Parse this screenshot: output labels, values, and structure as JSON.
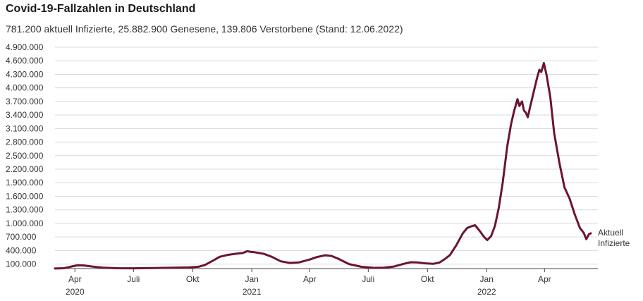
{
  "header": {
    "title": "Covid-19-Fallzahlen in Deutschland",
    "subtitle": "781.200 aktuell Infizierte, 25.882.900 Genesene, 139.806 Verstorbene (Stand: 12.06.2022)"
  },
  "chart_data": {
    "type": "line",
    "title": "Covid-19-Fallzahlen in Deutschland",
    "subtitle": "781.200 aktuell Infizierte, 25.882.900 Genesene, 139.806 Verstorbene (Stand: 12.06.2022)",
    "xlabel": "",
    "ylabel": "",
    "x_range": [
      "2020-03-01",
      "2022-06-12"
    ],
    "ylim": [
      0,
      4900000
    ],
    "grid": true,
    "y_ticks": [
      {
        "value": 100000,
        "label": "100.000"
      },
      {
        "value": 400000,
        "label": "400.000"
      },
      {
        "value": 700000,
        "label": "700.000"
      },
      {
        "value": 1000000,
        "label": "1.000.000"
      },
      {
        "value": 1300000,
        "label": "1.300.000"
      },
      {
        "value": 1600000,
        "label": "1.600.000"
      },
      {
        "value": 1900000,
        "label": "1.900.000"
      },
      {
        "value": 2200000,
        "label": "2.200.000"
      },
      {
        "value": 2500000,
        "label": "2.500.000"
      },
      {
        "value": 2800000,
        "label": "2.800.000"
      },
      {
        "value": 3100000,
        "label": "3.100.000"
      },
      {
        "value": 3400000,
        "label": "3.400.000"
      },
      {
        "value": 3700000,
        "label": "3.700.000"
      },
      {
        "value": 4000000,
        "label": "4.000.000"
      },
      {
        "value": 4300000,
        "label": "4.300.000"
      },
      {
        "value": 4600000,
        "label": "4.600.000"
      },
      {
        "value": 4900000,
        "label": "4.900.000"
      }
    ],
    "x_ticks": [
      {
        "date": "2020-04-01",
        "label": "Apr",
        "year_label": "2020"
      },
      {
        "date": "2020-07-01",
        "label": "Juli",
        "year_label": ""
      },
      {
        "date": "2020-10-01",
        "label": "Okt",
        "year_label": ""
      },
      {
        "date": "2021-01-01",
        "label": "Jan",
        "year_label": "2021"
      },
      {
        "date": "2021-04-01",
        "label": "Apr",
        "year_label": ""
      },
      {
        "date": "2021-07-01",
        "label": "Juli",
        "year_label": ""
      },
      {
        "date": "2021-10-01",
        "label": "Okt",
        "year_label": ""
      },
      {
        "date": "2022-01-01",
        "label": "Jan",
        "year_label": "2022"
      },
      {
        "date": "2022-04-01",
        "label": "Apr",
        "year_label": ""
      }
    ],
    "series": [
      {
        "name": "Aktuell Infizierte",
        "label_lines": [
          "Aktuell",
          "Infizierte"
        ],
        "color": "#6b1530",
        "points": [
          {
            "x": "2020-03-01",
            "y": 1000
          },
          {
            "x": "2020-03-15",
            "y": 8000
          },
          {
            "x": "2020-03-25",
            "y": 40000
          },
          {
            "x": "2020-04-05",
            "y": 72000
          },
          {
            "x": "2020-04-15",
            "y": 68000
          },
          {
            "x": "2020-04-28",
            "y": 45000
          },
          {
            "x": "2020-05-15",
            "y": 20000
          },
          {
            "x": "2020-06-05",
            "y": 8000
          },
          {
            "x": "2020-07-01",
            "y": 6000
          },
          {
            "x": "2020-08-01",
            "y": 11000
          },
          {
            "x": "2020-09-01",
            "y": 20000
          },
          {
            "x": "2020-09-25",
            "y": 25000
          },
          {
            "x": "2020-10-10",
            "y": 40000
          },
          {
            "x": "2020-10-20",
            "y": 80000
          },
          {
            "x": "2020-11-01",
            "y": 170000
          },
          {
            "x": "2020-11-12",
            "y": 260000
          },
          {
            "x": "2020-11-25",
            "y": 305000
          },
          {
            "x": "2020-12-08",
            "y": 330000
          },
          {
            "x": "2020-12-18",
            "y": 345000
          },
          {
            "x": "2020-12-25",
            "y": 385000
          },
          {
            "x": "2020-12-30",
            "y": 370000
          },
          {
            "x": "2021-01-05",
            "y": 362000
          },
          {
            "x": "2021-01-12",
            "y": 345000
          },
          {
            "x": "2021-01-20",
            "y": 325000
          },
          {
            "x": "2021-02-01",
            "y": 260000
          },
          {
            "x": "2021-02-15",
            "y": 160000
          },
          {
            "x": "2021-03-01",
            "y": 125000
          },
          {
            "x": "2021-03-15",
            "y": 135000
          },
          {
            "x": "2021-04-01",
            "y": 200000
          },
          {
            "x": "2021-04-12",
            "y": 255000
          },
          {
            "x": "2021-04-25",
            "y": 295000
          },
          {
            "x": "2021-05-05",
            "y": 280000
          },
          {
            "x": "2021-05-15",
            "y": 220000
          },
          {
            "x": "2021-06-01",
            "y": 100000
          },
          {
            "x": "2021-06-20",
            "y": 40000
          },
          {
            "x": "2021-07-10",
            "y": 15000
          },
          {
            "x": "2021-07-25",
            "y": 20000
          },
          {
            "x": "2021-08-10",
            "y": 45000
          },
          {
            "x": "2021-08-25",
            "y": 105000
          },
          {
            "x": "2021-09-05",
            "y": 140000
          },
          {
            "x": "2021-09-15",
            "y": 135000
          },
          {
            "x": "2021-09-28",
            "y": 115000
          },
          {
            "x": "2021-10-10",
            "y": 105000
          },
          {
            "x": "2021-10-20",
            "y": 135000
          },
          {
            "x": "2021-10-28",
            "y": 210000
          },
          {
            "x": "2021-11-05",
            "y": 300000
          },
          {
            "x": "2021-11-15",
            "y": 520000
          },
          {
            "x": "2021-11-25",
            "y": 780000
          },
          {
            "x": "2021-12-02",
            "y": 900000
          },
          {
            "x": "2021-12-08",
            "y": 935000
          },
          {
            "x": "2021-12-14",
            "y": 960000
          },
          {
            "x": "2021-12-22",
            "y": 820000
          },
          {
            "x": "2021-12-28",
            "y": 700000
          },
          {
            "x": "2022-01-02",
            "y": 630000
          },
          {
            "x": "2022-01-08",
            "y": 720000
          },
          {
            "x": "2022-01-14",
            "y": 950000
          },
          {
            "x": "2022-01-20",
            "y": 1350000
          },
          {
            "x": "2022-01-26",
            "y": 1900000
          },
          {
            "x": "2022-02-02",
            "y": 2700000
          },
          {
            "x": "2022-02-08",
            "y": 3200000
          },
          {
            "x": "2022-02-13",
            "y": 3500000
          },
          {
            "x": "2022-02-18",
            "y": 3750000
          },
          {
            "x": "2022-02-21",
            "y": 3600000
          },
          {
            "x": "2022-02-25",
            "y": 3700000
          },
          {
            "x": "2022-02-28",
            "y": 3500000
          },
          {
            "x": "2022-03-03",
            "y": 3450000
          },
          {
            "x": "2022-03-06",
            "y": 3350000
          },
          {
            "x": "2022-03-10",
            "y": 3600000
          },
          {
            "x": "2022-03-15",
            "y": 3900000
          },
          {
            "x": "2022-03-20",
            "y": 4200000
          },
          {
            "x": "2022-03-24",
            "y": 4400000
          },
          {
            "x": "2022-03-27",
            "y": 4350000
          },
          {
            "x": "2022-03-31",
            "y": 4550000
          },
          {
            "x": "2022-04-04",
            "y": 4300000
          },
          {
            "x": "2022-04-10",
            "y": 3800000
          },
          {
            "x": "2022-04-16",
            "y": 3000000
          },
          {
            "x": "2022-04-24",
            "y": 2350000
          },
          {
            "x": "2022-05-02",
            "y": 1800000
          },
          {
            "x": "2022-05-10",
            "y": 1550000
          },
          {
            "x": "2022-05-18",
            "y": 1200000
          },
          {
            "x": "2022-05-26",
            "y": 900000
          },
          {
            "x": "2022-06-01",
            "y": 790000
          },
          {
            "x": "2022-06-05",
            "y": 650000
          },
          {
            "x": "2022-06-09",
            "y": 760000
          },
          {
            "x": "2022-06-12",
            "y": 781200
          }
        ]
      }
    ]
  }
}
